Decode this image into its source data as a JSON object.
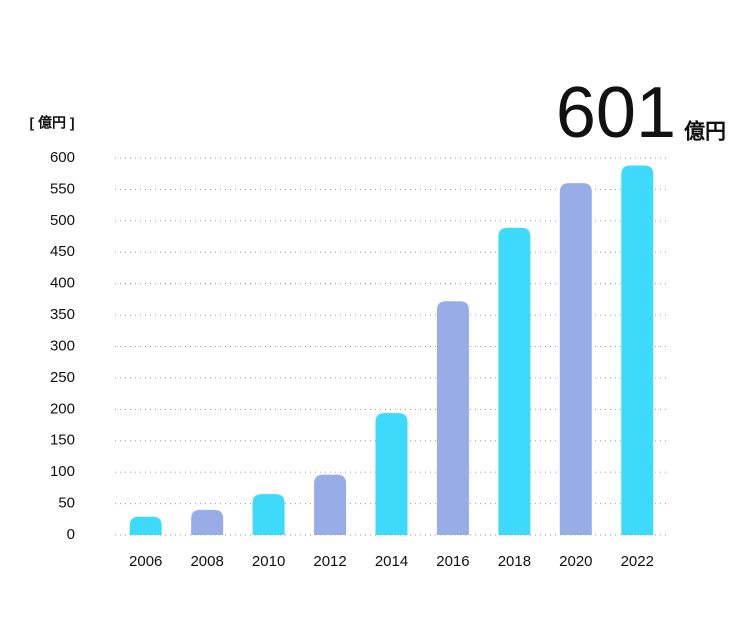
{
  "chart_data": {
    "type": "bar",
    "headline": {
      "number": "601",
      "unit": "億円"
    },
    "y_label": "[ 億円 ]",
    "categories": [
      "2006",
      "2008",
      "2010",
      "2012",
      "2014",
      "2016",
      "2018",
      "2020",
      "2022"
    ],
    "values": [
      29,
      40,
      65,
      96,
      194,
      372,
      489,
      560,
      588
    ],
    "colors": [
      "#3ddafc",
      "#98ace8",
      "#3ddafc",
      "#98ace8",
      "#3ddafc",
      "#98ace8",
      "#3ddafc",
      "#98ace8",
      "#3ddafc"
    ],
    "ylim": [
      0,
      600
    ],
    "yticks": [
      0,
      50,
      100,
      150,
      200,
      250,
      300,
      350,
      400,
      450,
      500,
      550,
      600
    ],
    "grid": true
  }
}
